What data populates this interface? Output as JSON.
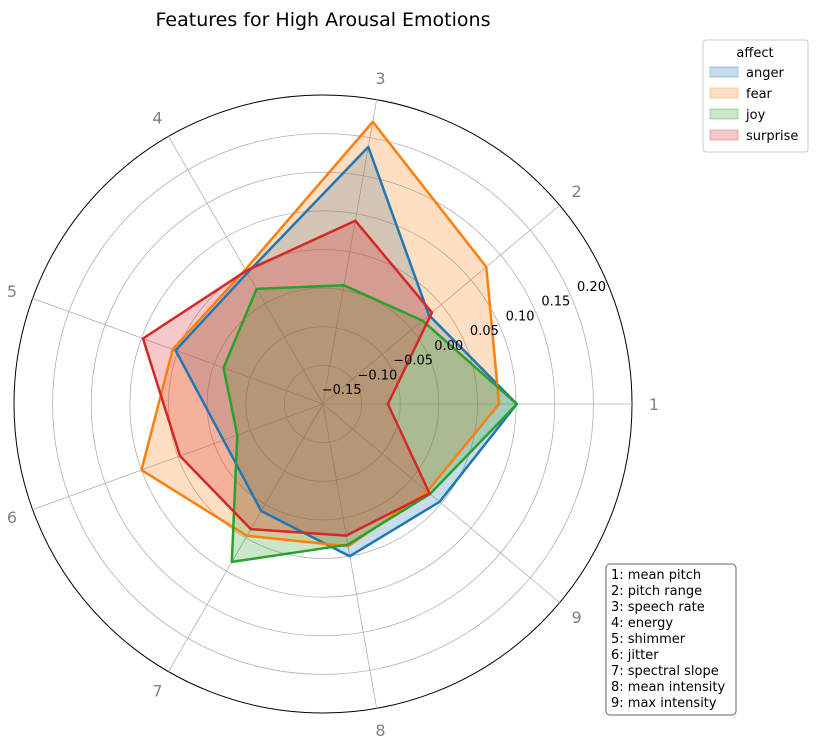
{
  "chart_data": {
    "type": "radar",
    "title": "Features for High Arousal Emotions",
    "axes": [
      "1",
      "2",
      "3",
      "4",
      "5",
      "6",
      "7",
      "8",
      "9"
    ],
    "radial_ticks": [
      "−0.15",
      "−0.10",
      "−0.05",
      "0.00",
      "0.05",
      "0.10",
      "0.15",
      "0.20"
    ],
    "radial_tick_values": [
      -0.15,
      -0.1,
      -0.05,
      0.0,
      0.05,
      0.1,
      0.15,
      0.2
    ],
    "rlim": [
      -0.2,
      0.2
    ],
    "grid": true,
    "legend": {
      "title": "affect",
      "placement": "upper-right outside"
    },
    "series": [
      {
        "name": "anger",
        "color": "#1f77b4",
        "values": [
          0.051,
          -0.021,
          0.138,
          -0.004,
          0.003,
          -0.063,
          -0.04,
          0.0,
          -0.003
        ]
      },
      {
        "name": "fear",
        "color": "#ff7f0e",
        "values": [
          0.028,
          0.076,
          0.171,
          0.001,
          0.007,
          0.05,
          -0.003,
          -0.013,
          -0.024
        ]
      },
      {
        "name": "joy",
        "color": "#2ca02c",
        "values": [
          0.051,
          -0.032,
          -0.044,
          -0.028,
          -0.063,
          -0.082,
          0.036,
          -0.015,
          -0.019
        ]
      },
      {
        "name": "surprise",
        "color": "#d62728",
        "values": [
          -0.116,
          -0.016,
          0.041,
          -0.001,
          0.048,
          -0.003,
          -0.013,
          -0.027,
          -0.02
        ]
      }
    ],
    "feature_key": [
      "1: mean pitch",
      "2: pitch range",
      "3: speech rate",
      "4: energy",
      "5: shimmer",
      "6: jitter",
      "7: spectral slope",
      "8: mean intensity",
      "9: max intensity"
    ]
  }
}
